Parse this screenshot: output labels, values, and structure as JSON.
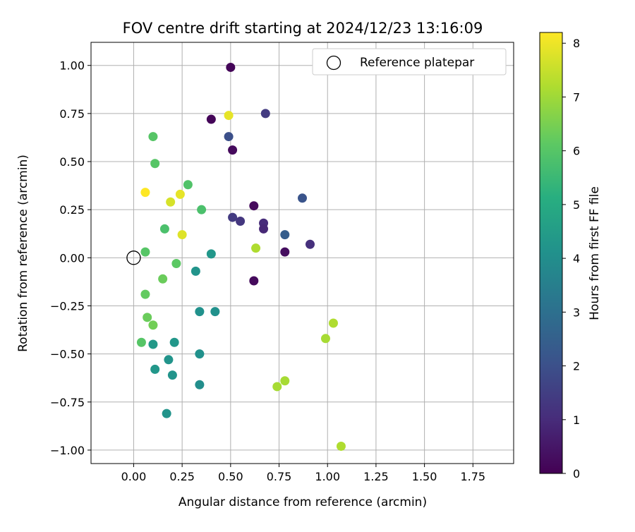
{
  "chart_data": {
    "type": "scatter",
    "title": "FOV centre drift starting at 2024/12/23 13:16:09",
    "xlabel": "Angular distance from reference (arcmin)",
    "ylabel": "Rotation from reference (arcmin)",
    "xlim": [
      -0.22,
      1.96
    ],
    "ylim": [
      -1.07,
      1.12
    ],
    "xticks": [
      "0.00",
      "0.25",
      "0.50",
      "0.75",
      "1.00",
      "1.25",
      "1.50",
      "1.75"
    ],
    "yticks": [
      "1.00",
      "0.75",
      "0.50",
      "0.25",
      "0.00",
      "−0.25",
      "−0.50",
      "−0.75",
      "−1.00"
    ],
    "grid": true,
    "legend": {
      "placement": "top-right",
      "entries": [
        "Reference platepar"
      ]
    },
    "reference_point": {
      "x": 0.0,
      "y": 0.0,
      "marker": "open-circle",
      "color": "#000000"
    },
    "colorbar": {
      "label": "Hours from first FF file",
      "colormap": "viridis",
      "range": [
        0,
        8.2
      ],
      "ticks": [
        "0",
        "1",
        "2",
        "3",
        "4",
        "5",
        "6",
        "7",
        "8"
      ]
    },
    "points": [
      {
        "x": 0.5,
        "y": 0.99,
        "hours": 0.1
      },
      {
        "x": 0.4,
        "y": 0.72,
        "hours": 0.1
      },
      {
        "x": 0.51,
        "y": 0.56,
        "hours": 0.2
      },
      {
        "x": 0.62,
        "y": 0.27,
        "hours": 0.2
      },
      {
        "x": 0.78,
        "y": 0.03,
        "hours": 0.3
      },
      {
        "x": 0.62,
        "y": -0.12,
        "hours": 0.2
      },
      {
        "x": 0.67,
        "y": 0.18,
        "hours": 1.0
      },
      {
        "x": 0.67,
        "y": 0.15,
        "hours": 0.9
      },
      {
        "x": 0.91,
        "y": 0.07,
        "hours": 1.1
      },
      {
        "x": 0.68,
        "y": 0.75,
        "hours": 1.4
      },
      {
        "x": 0.51,
        "y": 0.21,
        "hours": 1.4
      },
      {
        "x": 0.55,
        "y": 0.19,
        "hours": 1.3
      },
      {
        "x": 0.49,
        "y": 0.63,
        "hours": 2.0
      },
      {
        "x": 0.87,
        "y": 0.31,
        "hours": 2.1
      },
      {
        "x": 0.78,
        "y": 0.12,
        "hours": 2.4
      },
      {
        "x": 0.4,
        "y": 0.02,
        "hours": 4.3
      },
      {
        "x": 0.32,
        "y": -0.07,
        "hours": 4.2
      },
      {
        "x": 0.34,
        "y": -0.28,
        "hours": 4.1
      },
      {
        "x": 0.42,
        "y": -0.28,
        "hours": 4.1
      },
      {
        "x": 0.34,
        "y": -0.5,
        "hours": 4.1
      },
      {
        "x": 0.34,
        "y": -0.66,
        "hours": 4.0
      },
      {
        "x": 0.21,
        "y": -0.44,
        "hours": 4.3
      },
      {
        "x": 0.18,
        "y": -0.53,
        "hours": 4.2
      },
      {
        "x": 0.2,
        "y": -0.61,
        "hours": 4.2
      },
      {
        "x": 0.1,
        "y": -0.45,
        "hours": 4.4
      },
      {
        "x": 0.11,
        "y": -0.58,
        "hours": 4.3
      },
      {
        "x": 0.17,
        "y": -0.81,
        "hours": 4.2
      },
      {
        "x": 0.04,
        "y": -0.44,
        "hours": 6.0
      },
      {
        "x": 0.1,
        "y": 0.63,
        "hours": 6.0
      },
      {
        "x": 0.11,
        "y": 0.49,
        "hours": 6.0
      },
      {
        "x": 0.28,
        "y": 0.38,
        "hours": 5.9
      },
      {
        "x": 0.35,
        "y": 0.25,
        "hours": 5.8
      },
      {
        "x": 0.16,
        "y": 0.15,
        "hours": 5.8
      },
      {
        "x": 0.06,
        "y": 0.03,
        "hours": 6.0
      },
      {
        "x": 0.22,
        "y": -0.03,
        "hours": 6.1
      },
      {
        "x": 0.15,
        "y": -0.11,
        "hours": 6.3
      },
      {
        "x": 0.06,
        "y": -0.19,
        "hours": 6.2
      },
      {
        "x": 0.07,
        "y": -0.31,
        "hours": 6.3
      },
      {
        "x": 0.1,
        "y": -0.35,
        "hours": 6.4
      },
      {
        "x": 0.06,
        "y": 0.34,
        "hours": 8.2
      },
      {
        "x": 0.24,
        "y": 0.33,
        "hours": 7.9
      },
      {
        "x": 0.19,
        "y": 0.29,
        "hours": 7.7
      },
      {
        "x": 0.25,
        "y": 0.12,
        "hours": 7.8
      },
      {
        "x": 0.49,
        "y": 0.74,
        "hours": 7.9
      },
      {
        "x": 0.63,
        "y": 0.05,
        "hours": 7.2
      },
      {
        "x": 1.03,
        "y": -0.34,
        "hours": 7.2
      },
      {
        "x": 0.99,
        "y": -0.42,
        "hours": 7.1
      },
      {
        "x": 0.74,
        "y": -0.67,
        "hours": 7.1
      },
      {
        "x": 0.78,
        "y": -0.64,
        "hours": 7.1
      },
      {
        "x": 1.07,
        "y": -0.98,
        "hours": 7.2
      }
    ]
  }
}
